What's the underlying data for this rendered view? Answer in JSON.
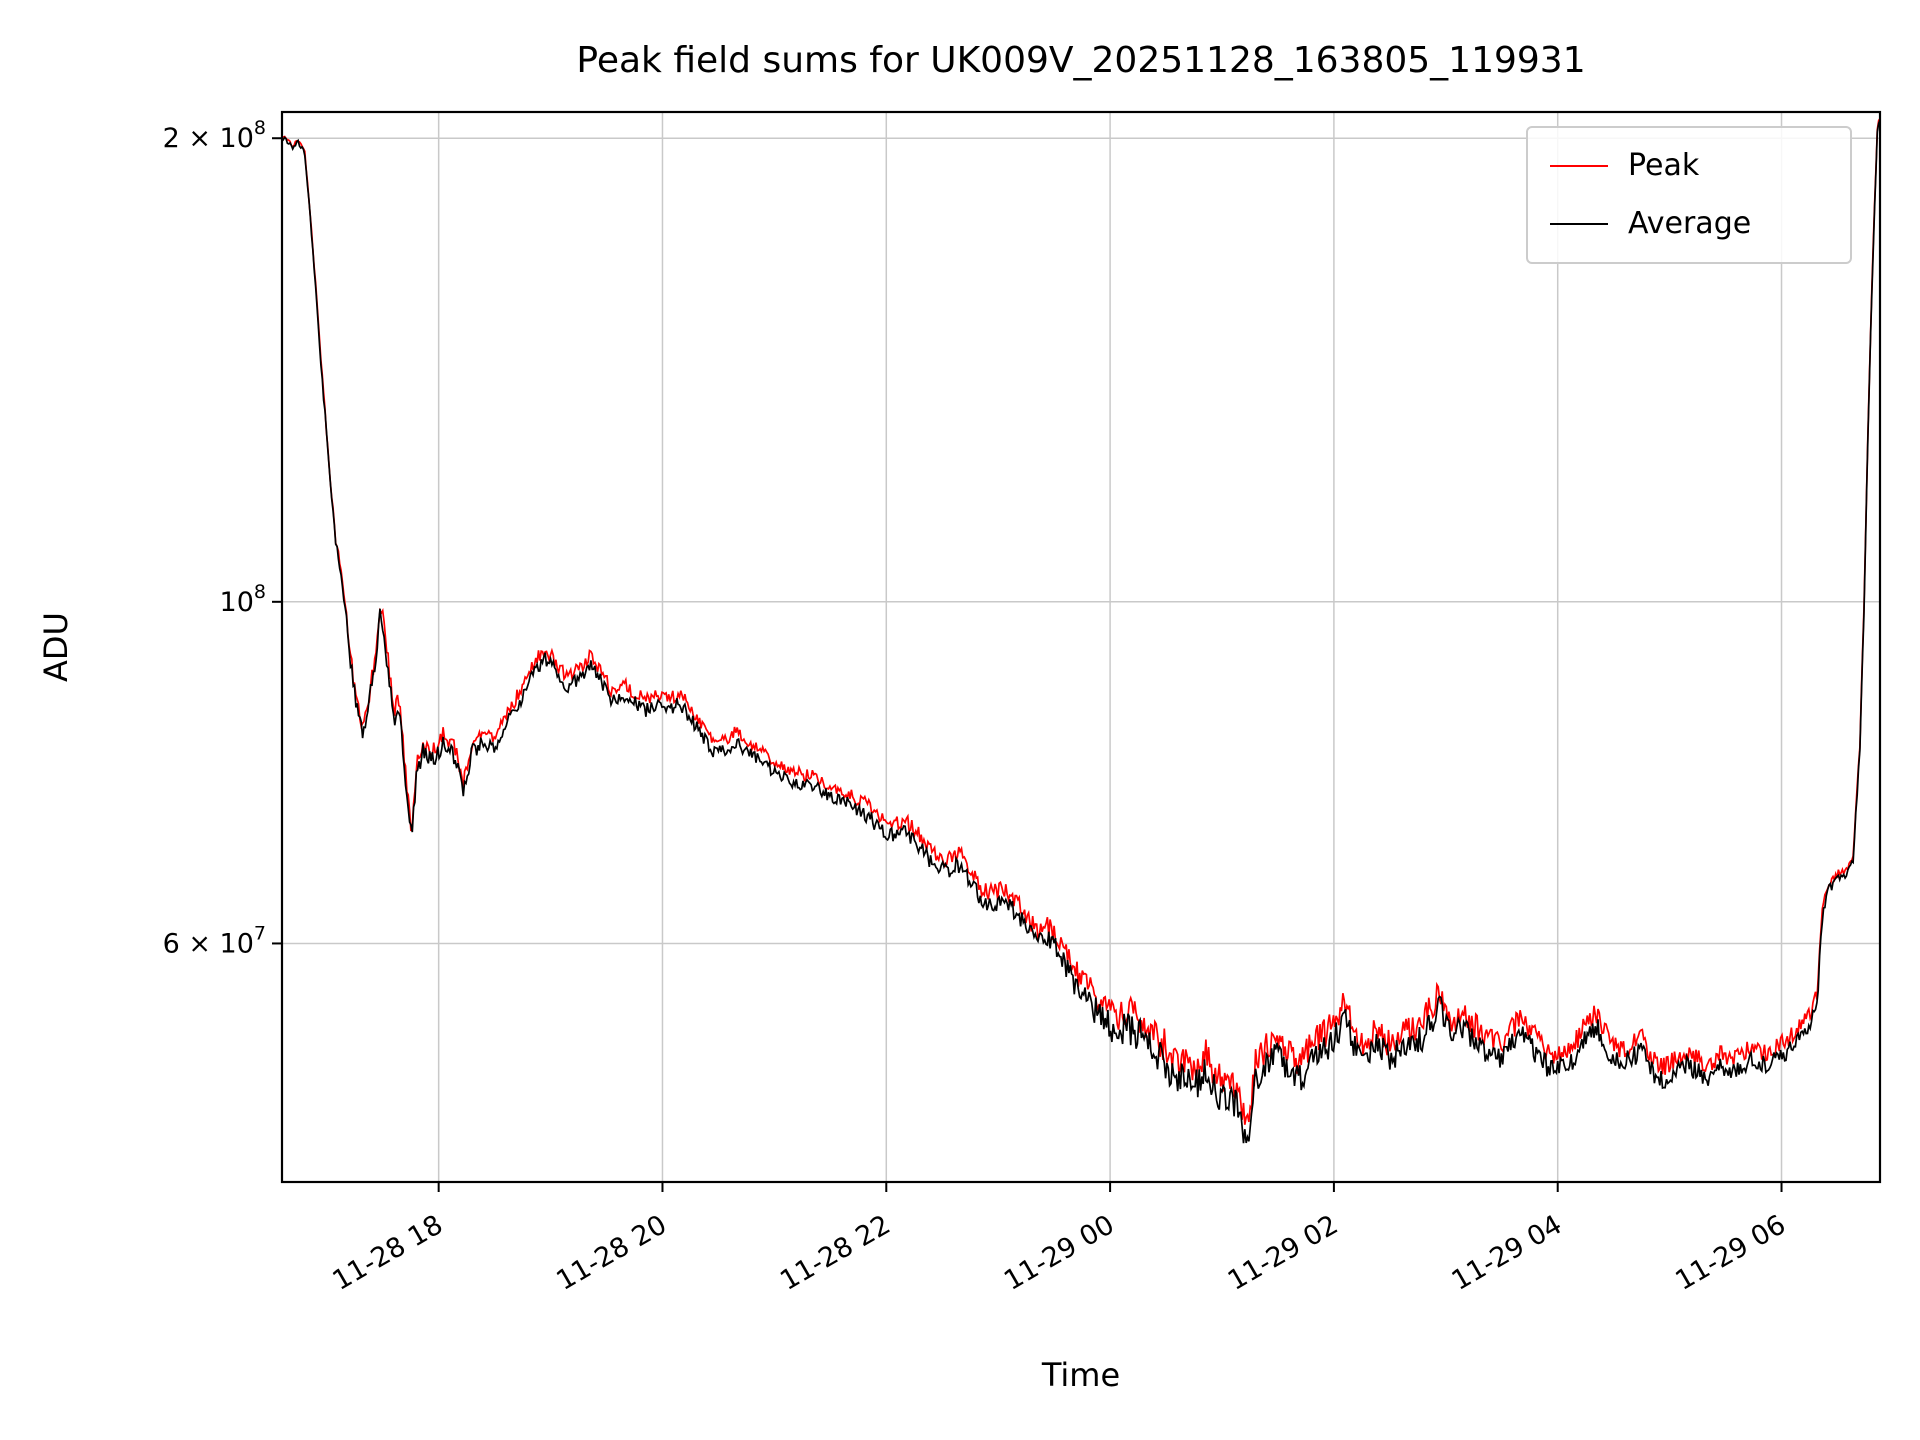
{
  "chart_data": {
    "type": "line",
    "title": "Peak field sums for UK009V_20251128_163805_119931",
    "xlabel": "Time",
    "ylabel": "ADU",
    "yscale": "log",
    "grid": true,
    "legend_position": "upper right",
    "ylim": [
      42000000.0,
      208000000.0
    ],
    "xlim_hours": [
      16.6,
      30.88
    ],
    "x_unit": "hours since 2025-11-28 00:00",
    "xticks": [
      {
        "hour": 18,
        "label": "11-28 18"
      },
      {
        "hour": 20,
        "label": "11-28 20"
      },
      {
        "hour": 22,
        "label": "11-28 22"
      },
      {
        "hour": 24,
        "label": "11-29 00"
      },
      {
        "hour": 26,
        "label": "11-29 02"
      },
      {
        "hour": 28,
        "label": "11-29 04"
      },
      {
        "hour": 30,
        "label": "11-29 06"
      }
    ],
    "yticks": [
      {
        "value": 200000000.0,
        "mantissa": "2 × 10",
        "exponent": "8"
      },
      {
        "value": 100000000.0,
        "mantissa": "10",
        "exponent": "8"
      },
      {
        "value": 60000000.0,
        "mantissa": "6 × 10",
        "exponent": "7"
      }
    ],
    "series": [
      {
        "name": "Peak",
        "color": "#ff0000"
      },
      {
        "name": "Average",
        "color": "#000000"
      }
    ],
    "average_anchors": [
      [
        16.62,
        200000000.0
      ],
      [
        16.7,
        197000000.0
      ],
      [
        16.74,
        199000000.0
      ],
      [
        16.8,
        196000000.0
      ],
      [
        16.86,
        175000000.0
      ],
      [
        16.94,
        145000000.0
      ],
      [
        17.02,
        122000000.0
      ],
      [
        17.08,
        109000000.0
      ],
      [
        17.14,
        103000000.0
      ],
      [
        17.2,
        93000000.0
      ],
      [
        17.26,
        86000000.0
      ],
      [
        17.32,
        82000000.0
      ],
      [
        17.38,
        86000000.0
      ],
      [
        17.44,
        92000000.0
      ],
      [
        17.48,
        99000000.0
      ],
      [
        17.52,
        94000000.0
      ],
      [
        17.56,
        89000000.0
      ],
      [
        17.6,
        83000000.0
      ],
      [
        17.64,
        86000000.0
      ],
      [
        17.68,
        80000000.0
      ],
      [
        17.72,
        74000000.0
      ],
      [
        17.76,
        70000000.0
      ],
      [
        17.8,
        77000000.0
      ],
      [
        17.86,
        80000000.0
      ],
      [
        17.95,
        79000000.0
      ],
      [
        18.05,
        81000000.0
      ],
      [
        18.15,
        79000000.0
      ],
      [
        18.22,
        75000000.0
      ],
      [
        18.3,
        80000000.0
      ],
      [
        18.4,
        81000000.0
      ],
      [
        18.5,
        80000000.0
      ],
      [
        18.6,
        83000000.0
      ],
      [
        18.72,
        86000000.0
      ],
      [
        18.85,
        90000000.0
      ],
      [
        18.95,
        92000000.0
      ],
      [
        19.05,
        90000000.0
      ],
      [
        19.15,
        88000000.0
      ],
      [
        19.25,
        89000000.0
      ],
      [
        19.35,
        91000000.0
      ],
      [
        19.45,
        89000000.0
      ],
      [
        19.55,
        86000000.0
      ],
      [
        19.65,
        87000000.0
      ],
      [
        19.75,
        86000000.0
      ],
      [
        19.85,
        85000000.0
      ],
      [
        19.95,
        86000000.0
      ],
      [
        20.05,
        85000000.0
      ],
      [
        20.15,
        86000000.0
      ],
      [
        20.25,
        84000000.0
      ],
      [
        20.35,
        82000000.0
      ],
      [
        20.45,
        80000000.0
      ],
      [
        20.55,
        80000000.0
      ],
      [
        20.65,
        81000000.0
      ],
      [
        20.75,
        80000000.0
      ],
      [
        20.85,
        79000000.0
      ],
      [
        20.95,
        78000000.0
      ],
      [
        21.05,
        77000000.0
      ],
      [
        21.15,
        76500000.0
      ],
      [
        21.25,
        76000000.0
      ],
      [
        21.35,
        76000000.0
      ],
      [
        21.45,
        75000000.0
      ],
      [
        21.55,
        74500000.0
      ],
      [
        21.65,
        74000000.0
      ],
      [
        21.75,
        73000000.0
      ],
      [
        21.85,
        72500000.0
      ],
      [
        21.95,
        71000000.0
      ],
      [
        22.05,
        70500000.0
      ],
      [
        22.15,
        71000000.0
      ],
      [
        22.25,
        70000000.0
      ],
      [
        22.35,
        68500000.0
      ],
      [
        22.45,
        67000000.0
      ],
      [
        22.55,
        67000000.0
      ],
      [
        22.65,
        67500000.0
      ],
      [
        22.75,
        66000000.0
      ],
      [
        22.85,
        64000000.0
      ],
      [
        22.95,
        63500000.0
      ],
      [
        23.05,
        64000000.0
      ],
      [
        23.15,
        63000000.0
      ],
      [
        23.25,
        61500000.0
      ],
      [
        23.35,
        60000000.0
      ],
      [
        23.45,
        60500000.0
      ],
      [
        23.55,
        59000000.0
      ],
      [
        23.65,
        57000000.0
      ],
      [
        23.75,
        55500000.0
      ],
      [
        23.85,
        54500000.0
      ],
      [
        23.95,
        53500000.0
      ],
      [
        24.05,
        52500000.0
      ],
      [
        24.15,
        53000000.0
      ],
      [
        24.25,
        52500000.0
      ],
      [
        24.35,
        51500000.0
      ],
      [
        24.45,
        50500000.0
      ],
      [
        24.55,
        49500000.0
      ],
      [
        24.65,
        49000000.0
      ],
      [
        24.75,
        48500000.0
      ],
      [
        24.85,
        49500000.0
      ],
      [
        24.95,
        48000000.0
      ],
      [
        25.05,
        47500000.0
      ],
      [
        25.15,
        47000000.0
      ],
      [
        25.22,
        44000000.0
      ],
      [
        25.3,
        49000000.0
      ],
      [
        25.4,
        50000000.0
      ],
      [
        25.5,
        51000000.0
      ],
      [
        25.6,
        49500000.0
      ],
      [
        25.7,
        49000000.0
      ],
      [
        25.8,
        50500000.0
      ],
      [
        25.9,
        51000000.0
      ],
      [
        26.0,
        52000000.0
      ],
      [
        26.1,
        53500000.0
      ],
      [
        26.18,
        51500000.0
      ],
      [
        26.28,
        50000000.0
      ],
      [
        26.38,
        52000000.0
      ],
      [
        26.48,
        50500000.0
      ],
      [
        26.58,
        51000000.0
      ],
      [
        26.68,
        51500000.0
      ],
      [
        26.78,
        52000000.0
      ],
      [
        26.88,
        53500000.0
      ],
      [
        26.95,
        54500000.0
      ],
      [
        27.05,
        52000000.0
      ],
      [
        27.15,
        53000000.0
      ],
      [
        27.25,
        52000000.0
      ],
      [
        27.35,
        51000000.0
      ],
      [
        27.45,
        50500000.0
      ],
      [
        27.55,
        51000000.0
      ],
      [
        27.65,
        52500000.0
      ],
      [
        27.75,
        51500000.0
      ],
      [
        27.85,
        50500000.0
      ],
      [
        27.95,
        49500000.0
      ],
      [
        28.05,
        50000000.0
      ],
      [
        28.15,
        50500000.0
      ],
      [
        28.25,
        52000000.0
      ],
      [
        28.35,
        53000000.0
      ],
      [
        28.45,
        51000000.0
      ],
      [
        28.55,
        50000000.0
      ],
      [
        28.65,
        50500000.0
      ],
      [
        28.75,
        51000000.0
      ],
      [
        28.85,
        49500000.0
      ],
      [
        28.95,
        49000000.0
      ],
      [
        29.05,
        49500000.0
      ],
      [
        29.15,
        50000000.0
      ],
      [
        29.25,
        49500000.0
      ],
      [
        29.35,
        49000000.0
      ],
      [
        29.45,
        50000000.0
      ],
      [
        29.55,
        49500000.0
      ],
      [
        29.65,
        50000000.0
      ],
      [
        29.75,
        50500000.0
      ],
      [
        29.85,
        50000000.0
      ],
      [
        29.95,
        50500000.0
      ],
      [
        30.05,
        51000000.0
      ],
      [
        30.15,
        52000000.0
      ],
      [
        30.25,
        53000000.0
      ],
      [
        30.32,
        55000000.0
      ],
      [
        30.36,
        62000000.0
      ],
      [
        30.42,
        65000000.0
      ],
      [
        30.5,
        66000000.0
      ],
      [
        30.58,
        66500000.0
      ],
      [
        30.64,
        68000000.0
      ],
      [
        30.7,
        80000000.0
      ],
      [
        30.74,
        100000000.0
      ],
      [
        30.78,
        135000000.0
      ],
      [
        30.82,
        170000000.0
      ],
      [
        30.86,
        205000000.0
      ]
    ],
    "peak_ratio_profile": [
      [
        16.6,
        1.003
      ],
      [
        17.2,
        1.008
      ],
      [
        17.8,
        1.014
      ],
      [
        23.5,
        1.018
      ],
      [
        24.2,
        1.028
      ],
      [
        30.2,
        1.018
      ],
      [
        30.55,
        1.008
      ],
      [
        30.88,
        1.003
      ]
    ],
    "noise_profile": [
      [
        16.6,
        0.0025
      ],
      [
        16.9,
        0.004
      ],
      [
        17.35,
        0.013
      ],
      [
        18.6,
        0.011
      ],
      [
        21.0,
        0.009
      ],
      [
        23.4,
        0.014
      ],
      [
        24.2,
        0.026
      ],
      [
        30.25,
        0.012
      ],
      [
        30.55,
        0.005
      ],
      [
        30.88,
        0.003
      ]
    ],
    "noise_seed": 119931,
    "sample_step_hours": 0.012
  }
}
